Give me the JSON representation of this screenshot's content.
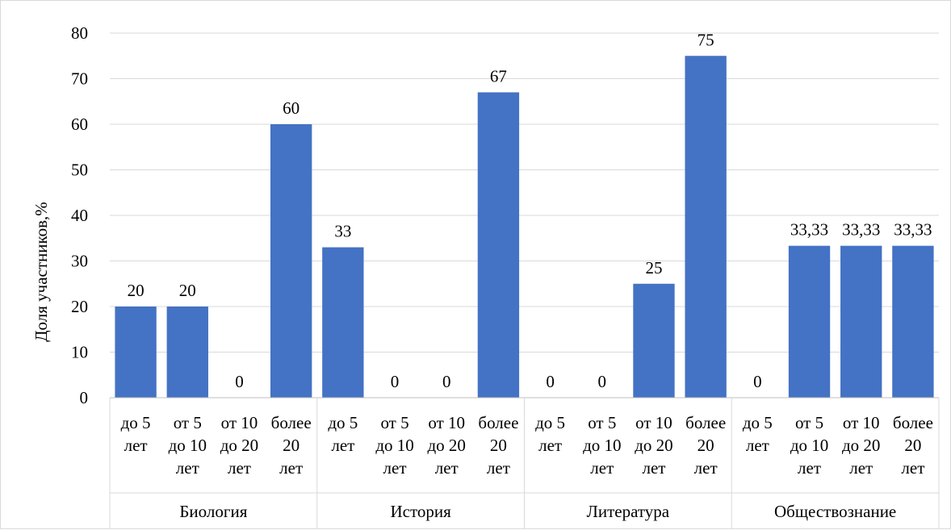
{
  "chart_data": {
    "type": "bar",
    "title": "",
    "xlabel": "",
    "ylabel": "Доля участников,%",
    "ylim": [
      0,
      80
    ],
    "yticks": [
      0,
      10,
      20,
      30,
      40,
      50,
      60,
      70,
      80
    ],
    "grid": true,
    "legend": "none",
    "bar_color": "#4472C4",
    "groups": [
      {
        "name": "Биология",
        "categories": [
          [
            "до 5",
            "лет"
          ],
          [
            "от 5",
            "до 10",
            "лет"
          ],
          [
            "от 10",
            "до 20",
            "лет"
          ],
          [
            "более",
            "20",
            "лет"
          ]
        ],
        "values": [
          20,
          20,
          0,
          60
        ],
        "labels": [
          "20",
          "20",
          "0",
          "60"
        ]
      },
      {
        "name": "История",
        "categories": [
          [
            "до 5",
            "лет"
          ],
          [
            "от 5",
            "до 10",
            "лет"
          ],
          [
            "от 10",
            "до 20",
            "лет"
          ],
          [
            "более",
            "20",
            "лет"
          ]
        ],
        "values": [
          33,
          0,
          0,
          67
        ],
        "labels": [
          "33",
          "0",
          "0",
          "67"
        ]
      },
      {
        "name": "Литература",
        "categories": [
          [
            "до 5",
            "лет"
          ],
          [
            "от 5",
            "до 10",
            "лет"
          ],
          [
            "от 10",
            "до 20",
            "лет"
          ],
          [
            "более",
            "20",
            "лет"
          ]
        ],
        "values": [
          0,
          0,
          25,
          75
        ],
        "labels": [
          "0",
          "0",
          "25",
          "75"
        ]
      },
      {
        "name": "Обществознание",
        "categories": [
          [
            "до 5",
            "лет"
          ],
          [
            "от 5",
            "до 10",
            "лет"
          ],
          [
            "от 10",
            "до 20",
            "лет"
          ],
          [
            "более",
            "20",
            "лет"
          ]
        ],
        "values": [
          0,
          33.33,
          33.33,
          33.33
        ],
        "labels": [
          "0",
          "33,33",
          "33,33",
          "33,33"
        ]
      }
    ]
  }
}
